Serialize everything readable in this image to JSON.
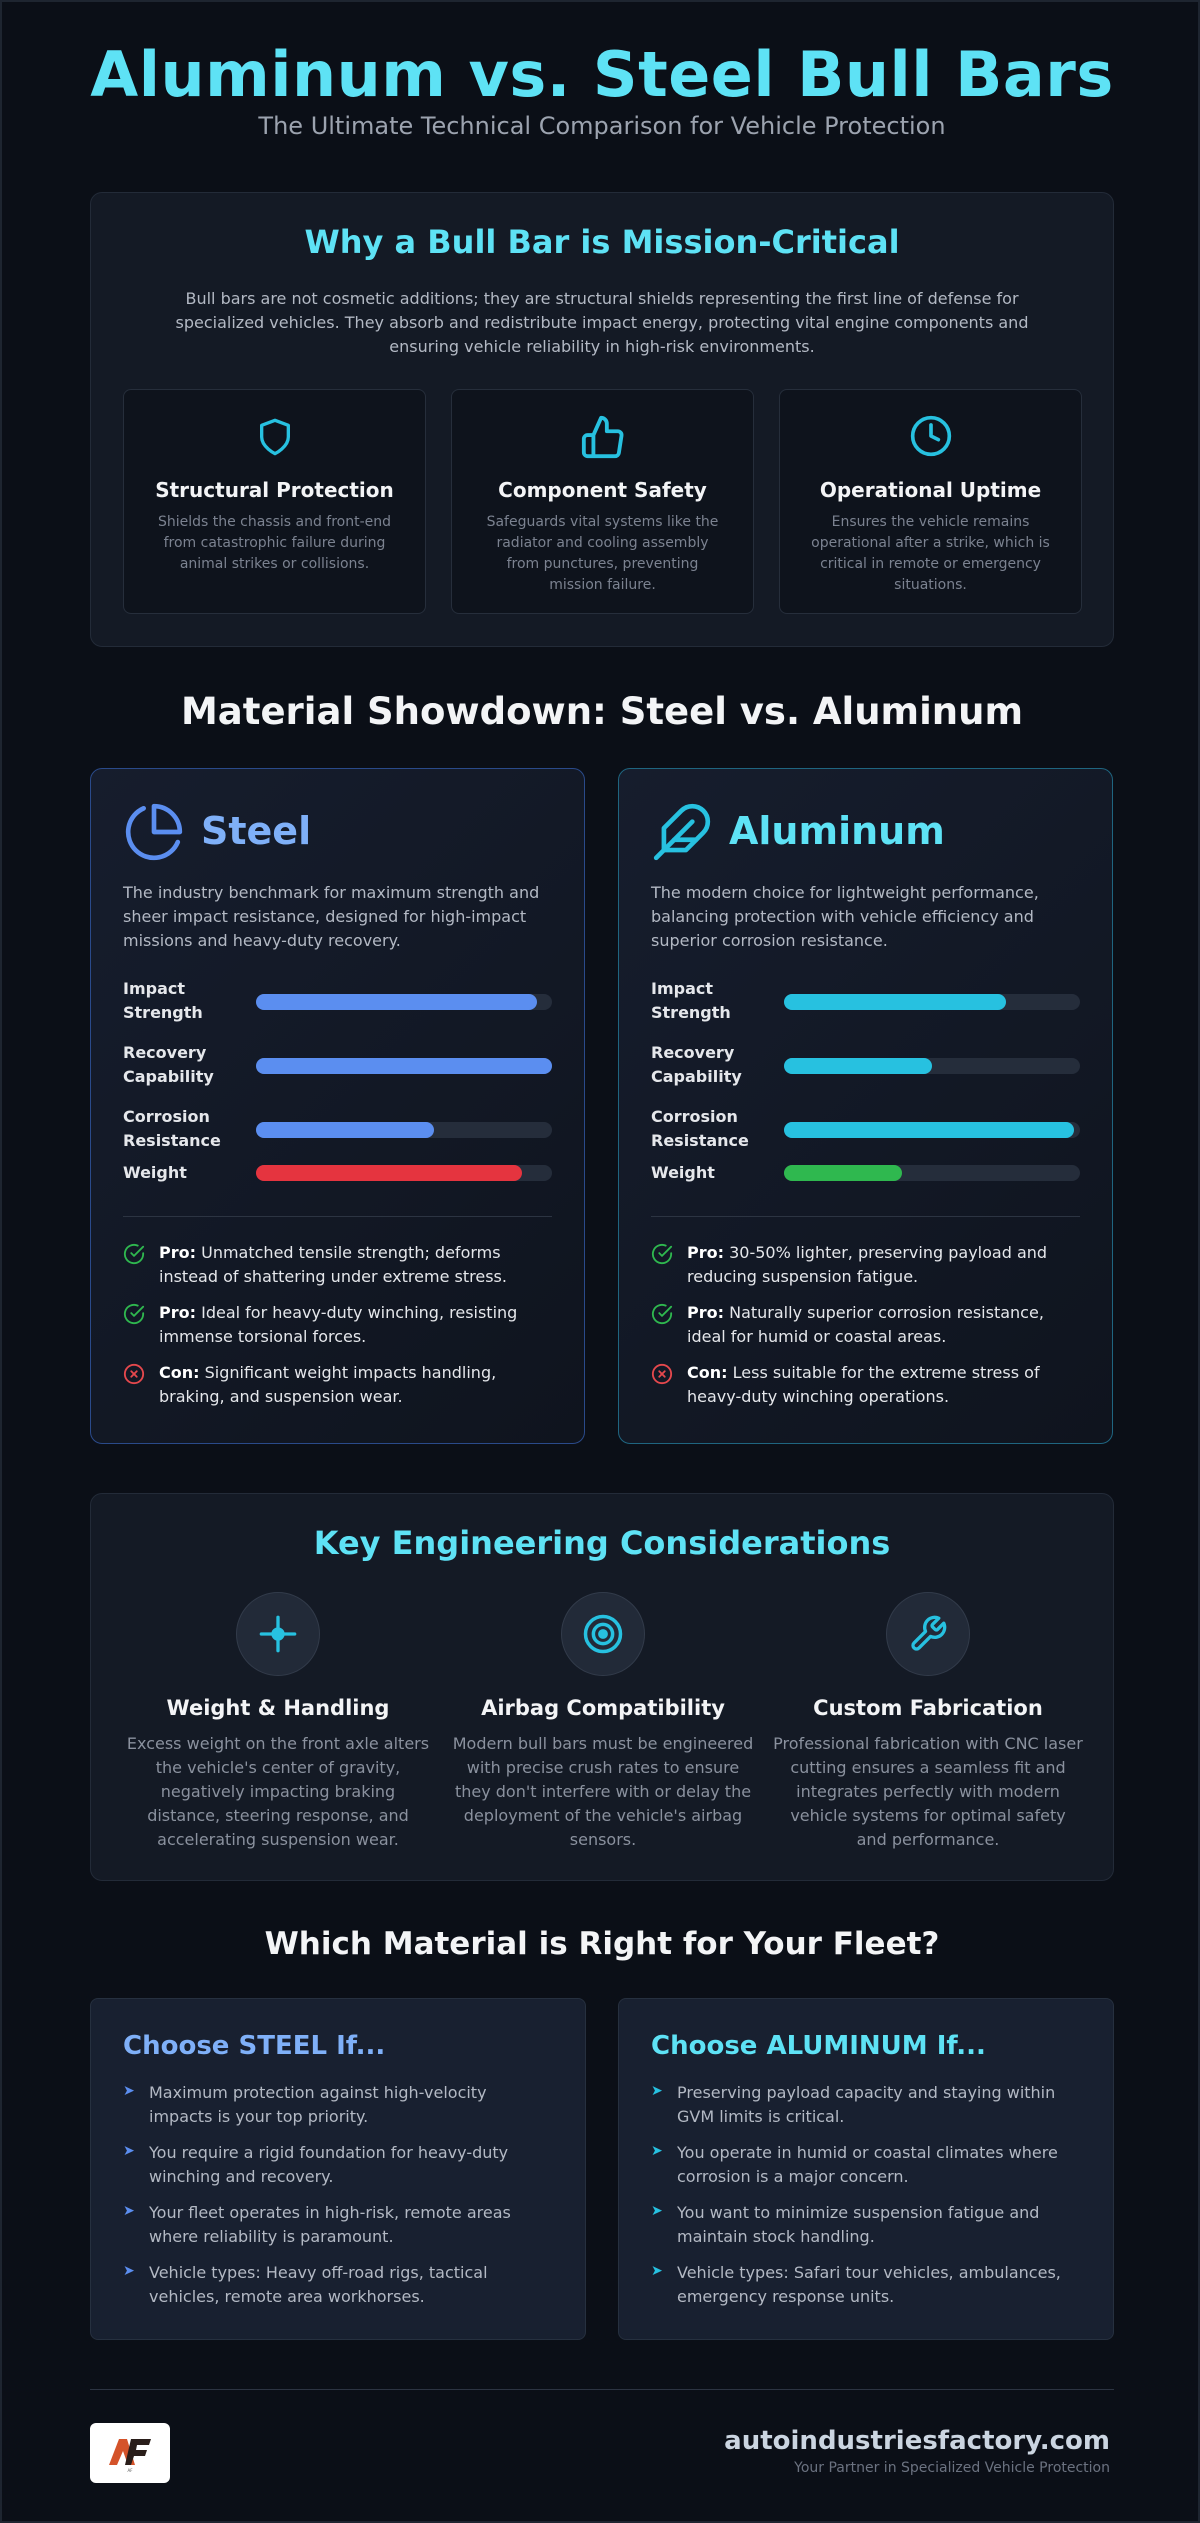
{
  "header": {
    "title": "Aluminum vs. Steel Bull Bars",
    "subtitle": "The Ultimate Technical Comparison for Vehicle Protection"
  },
  "mission": {
    "title": "Why a Bull Bar is Mission-Critical",
    "intro": "Bull bars are not cosmetic additions; they are structural shields representing the first line of defense for specialized vehicles. They absorb and redistribute impact energy, protecting vital engine components and ensuring vehicle reliability in high-risk environments.",
    "cards": [
      {
        "icon": "shield-icon",
        "title": "Structural Protection",
        "desc": "Shields the chassis and front-end from catastrophic failure during animal strikes or collisions."
      },
      {
        "icon": "thumbs-up-icon",
        "title": "Component Safety",
        "desc": "Safeguards vital systems like the radiator and cooling assembly from punctures, preventing mission failure."
      },
      {
        "icon": "clock-icon",
        "title": "Operational Uptime",
        "desc": "Ensures the vehicle remains operational after a strike, which is critical in remote or emergency situations."
      }
    ]
  },
  "showdown": {
    "title": "Material Showdown: Steel vs. Aluminum",
    "steel": {
      "name": "Steel",
      "icon": "pie-chart-icon",
      "accent": "#5b8ef0",
      "desc": "The industry benchmark for maximum strength and sheer impact resistance, designed for high-impact missions and heavy-duty recovery.",
      "metrics": [
        {
          "label": "Impact Strength",
          "value": 0.95,
          "color": "#5b8ef0"
        },
        {
          "label": "Recovery Capability",
          "value": 1.0,
          "color": "#5b8ef0"
        },
        {
          "label": "Corrosion Resistance",
          "value": 0.6,
          "color": "#5b8ef0"
        },
        {
          "label": "Weight",
          "value": 0.9,
          "color": "#e5343f"
        }
      ],
      "points": [
        {
          "kind": "Pro:",
          "text": "Unmatched tensile strength; deforms instead of shattering under extreme stress.",
          "type": "pro"
        },
        {
          "kind": "Pro:",
          "text": "Ideal for heavy-duty winching, resisting immense torsional forces.",
          "type": "pro"
        },
        {
          "kind": "Con:",
          "text": "Significant weight impacts handling, braking, and suspension wear.",
          "type": "con"
        }
      ]
    },
    "aluminum": {
      "name": "Aluminum",
      "icon": "feather-icon",
      "accent": "#27c1e0",
      "desc": "The modern choice for lightweight performance, balancing protection with vehicle efficiency and superior corrosion resistance.",
      "metrics": [
        {
          "label": "Impact Strength",
          "value": 0.75,
          "color": "#27c1e0"
        },
        {
          "label": "Recovery Capability",
          "value": 0.5,
          "color": "#27c1e0"
        },
        {
          "label": "Corrosion Resistance",
          "value": 0.98,
          "color": "#27c1e0"
        },
        {
          "label": "Weight",
          "value": 0.4,
          "color": "#2fb84f"
        }
      ],
      "points": [
        {
          "kind": "Pro:",
          "text": "30-50% lighter, preserving payload and reducing suspension fatigue.",
          "type": "pro"
        },
        {
          "kind": "Pro:",
          "text": "Naturally superior corrosion resistance, ideal for humid or coastal areas.",
          "type": "pro"
        },
        {
          "kind": "Con:",
          "text": "Less suitable for the extreme stress of heavy-duty winching operations.",
          "type": "con"
        }
      ]
    }
  },
  "engineering": {
    "title": "Key Engineering Considerations",
    "items": [
      {
        "icon": "crosshair-icon",
        "title": "Weight & Handling",
        "desc": "Excess weight on the front axle alters the vehicle's center of gravity, negatively impacting braking distance, steering response, and accelerating suspension wear."
      },
      {
        "icon": "target-icon",
        "title": "Airbag Compatibility",
        "desc": "Modern bull bars must be engineered with precise crush rates to ensure they don't interfere with or delay the deployment of the vehicle's airbag sensors."
      },
      {
        "icon": "wrench-icon",
        "title": "Custom Fabrication",
        "desc": "Professional fabrication with CNC laser cutting ensures a seamless fit and integrates perfectly with modern vehicle systems for optimal safety and performance."
      }
    ]
  },
  "fleet": {
    "title": "Which Material is Right for Your Fleet?",
    "steel": {
      "title": "Choose STEEL If...",
      "color": "#7fb0f8",
      "items": [
        "Maximum protection against high-velocity impacts is your top priority.",
        "You require a rigid foundation for heavy-duty winching and recovery.",
        "Your fleet operates in high-risk, remote areas where reliability is paramount.",
        "Vehicle types: Heavy off-road rigs, tactical vehicles, remote area workhorses."
      ]
    },
    "aluminum": {
      "title": "Choose ALUMINUM If...",
      "color": "#5ee2f5",
      "items": [
        "Preserving payload capacity and staying within GVM limits is critical.",
        "You operate in humid or coastal climates where corrosion is a major concern.",
        "You want to minimize suspension fatigue and maintain stock handling.",
        "Vehicle types: Safari tour vehicles, ambulances, emergency response units."
      ]
    }
  },
  "footer": {
    "logo_text": "AF",
    "site": "autoindustriesfactory.com",
    "tagline": "Your Partner in Specialized Vehicle Protection"
  }
}
